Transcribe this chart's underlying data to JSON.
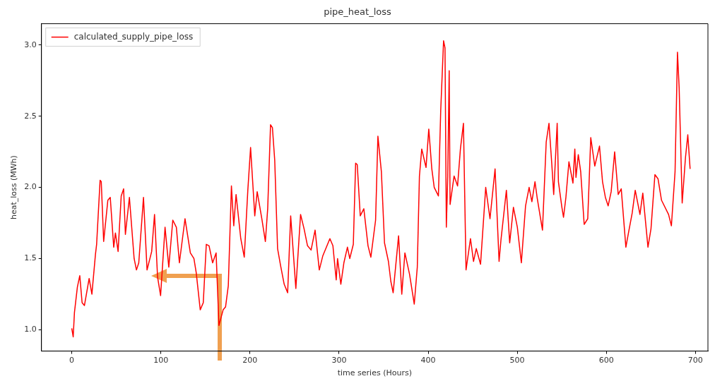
{
  "chart_data": {
    "type": "line",
    "title": "pipe_heat_loss",
    "xlabel": "time series (Hours)",
    "ylabel": "heat_loss (MWh)",
    "legend": "top left",
    "grid": false,
    "xlim": [
      -34,
      714
    ],
    "xticks": [
      0,
      100,
      200,
      300,
      400,
      500,
      600,
      700
    ],
    "ylim": [
      0.85,
      3.15
    ],
    "yticks": [
      {
        "value": 1,
        "label": "1.0"
      },
      {
        "value": 1.5,
        "label": "1.5"
      },
      {
        "value": 2,
        "label": "2.0"
      },
      {
        "value": 2.5,
        "label": "2.5"
      },
      {
        "value": 3,
        "label": "3.0"
      }
    ],
    "series": [
      {
        "name": "calculated_supply_pipe_loss",
        "color": "#ff0000",
        "x": [
          0,
          1.6,
          3,
          6.3,
          9,
          11.6,
          14.2,
          19.5,
          22.6,
          26.6,
          27.9,
          31.8,
          33.1,
          35.8,
          40.5,
          43.2,
          47.1,
          49,
          52,
          55.5,
          58.2,
          60.2,
          64.7,
          70,
          72.6,
          75.2,
          80.5,
          84.5,
          89.7,
          92.9,
          96.3,
          99.7,
          104.7,
          108.9,
          113.4,
          117.4,
          120.8,
          127.1,
          133.1,
          137.1,
          139.7,
          144.2,
          147.6,
          151,
          154.1,
          158.1,
          162,
          165.2,
          169.9,
          172.6,
          175.7,
          179.2,
          181.8,
          184.4,
          189.7,
          193.6,
          197.6,
          200.7,
          205.4,
          208.1,
          213.3,
          217.3,
          219.9,
          223.1,
          225.2,
          227.8,
          231,
          234.4,
          238.4,
          242.3,
          245.7,
          251.5,
          256.8,
          260.7,
          264.6,
          268.6,
          273.1,
          277.8,
          281.8,
          289.7,
          293.1,
          296.8,
          298.3,
          302,
          305.4,
          309.4,
          312,
          316,
          318.6,
          320.4,
          323.8,
          327.8,
          332.5,
          335.7,
          341,
          343.6,
          347.5,
          351,
          355.4,
          358.1,
          360.7,
          366.8,
          370.4,
          373.9,
          379.1,
          384.4,
          387.8,
          390.2,
          392.8,
          397.6,
          400.7,
          404.1,
          406.8,
          411.5,
          414.1,
          417.3,
          418.9,
          420.4,
          422,
          423.6,
          424.6,
          429.1,
          433,
          436.2,
          439.6,
          442.5,
          447.5,
          450.9,
          454,
          458.8,
          464.6,
          469.4,
          475.1,
          479.6,
          481.7,
          487.8,
          491.5,
          495.7,
          500.1,
          504.6,
          509.3,
          513.3,
          516.4,
          519.9,
          522.5,
          528.3,
          532.5,
          535.6,
          538.8,
          540.9,
          544.8,
          546.2,
          550.1,
          551.9,
          554.6,
          558,
          562.5,
          564.6,
          565.9,
          568.5,
          571.2,
          575.1,
          579.1,
          582.5,
          587,
          592.3,
          595.7,
          598.9,
          602,
          605.4,
          609.3,
          613.3,
          616.7,
          621.9,
          625.1,
          629,
          632.4,
          637.7,
          640.9,
          646.7,
          650.1,
          654.5,
          658,
          661.9,
          669.8,
          673,
          677.1,
          679.8,
          681.7,
          685.1,
          688.8,
          691.4,
          694
        ],
        "values": [
          1.01,
          0.95,
          1.12,
          1.3,
          1.38,
          1.19,
          1.17,
          1.36,
          1.25,
          1.53,
          1.6,
          2.05,
          2.04,
          1.62,
          1.91,
          1.93,
          1.58,
          1.68,
          1.55,
          1.94,
          1.99,
          1.67,
          1.93,
          1.5,
          1.42,
          1.47,
          1.93,
          1.42,
          1.55,
          1.81,
          1.37,
          1.24,
          1.72,
          1.44,
          1.77,
          1.72,
          1.47,
          1.78,
          1.54,
          1.5,
          1.4,
          1.14,
          1.19,
          1.6,
          1.59,
          1.47,
          1.54,
          1.03,
          1.14,
          1.16,
          1.31,
          2.01,
          1.73,
          1.95,
          1.64,
          1.51,
          1.98,
          2.28,
          1.8,
          1.97,
          1.78,
          1.62,
          1.85,
          2.44,
          2.42,
          2.19,
          1.57,
          1.45,
          1.32,
          1.26,
          1.8,
          1.29,
          1.81,
          1.71,
          1.59,
          1.56,
          1.7,
          1.42,
          1.52,
          1.64,
          1.59,
          1.35,
          1.5,
          1.32,
          1.47,
          1.58,
          1.5,
          1.6,
          2.17,
          2.16,
          1.8,
          1.85,
          1.59,
          1.51,
          1.77,
          2.36,
          2.11,
          1.61,
          1.48,
          1.34,
          1.26,
          1.66,
          1.25,
          1.54,
          1.39,
          1.18,
          1.44,
          2.08,
          2.27,
          2.14,
          2.41,
          2.13,
          2,
          1.94,
          2.54,
          3.03,
          2.98,
          1.72,
          2.08,
          2.82,
          1.88,
          2.08,
          2.01,
          2.27,
          2.45,
          1.42,
          1.64,
          1.48,
          1.57,
          1.46,
          2,
          1.78,
          2.13,
          1.48,
          1.63,
          1.98,
          1.61,
          1.86,
          1.72,
          1.47,
          1.87,
          2,
          1.9,
          2.04,
          1.92,
          1.7,
          2.32,
          2.45,
          2.16,
          1.95,
          2.45,
          2.04,
          1.86,
          1.79,
          1.93,
          2.18,
          2.03,
          2.27,
          2.07,
          2.23,
          2.11,
          1.74,
          1.78,
          2.35,
          2.15,
          2.29,
          2.04,
          1.93,
          1.87,
          1.97,
          2.25,
          1.95,
          1.99,
          1.58,
          1.69,
          1.82,
          1.98,
          1.81,
          1.96,
          1.58,
          1.71,
          2.09,
          2.06,
          1.91,
          1.81,
          1.73,
          2.11,
          2.95,
          2.7,
          1.89,
          2.21,
          2.37,
          2.13
        ]
      }
    ]
  }
}
